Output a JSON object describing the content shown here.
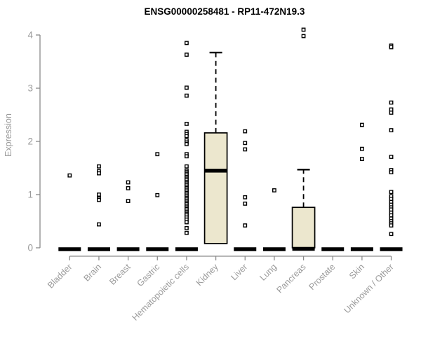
{
  "title": "ENSG00000258481 - RP11-472N19.3",
  "colors": {
    "background": "#ffffff",
    "axis": "#8a8a8a",
    "tick_text": "#9a9a9a",
    "box_fill": "#ece7ce",
    "data_ink": "#000000"
  },
  "chart_data": {
    "type": "boxplot",
    "title": "ENSG00000258481 - RP11-472N19.3",
    "xlabel": "",
    "ylabel": "Expression",
    "ylim": [
      0,
      4.15
    ],
    "yticks": [
      0,
      1,
      2,
      3,
      4
    ],
    "grid": false,
    "legend": false,
    "categories": [
      "Bladder",
      "Brain",
      "Breast",
      "Gastric",
      "Hematopoietic cells",
      "Kidney",
      "Liver",
      "Lung",
      "Pancreas",
      "Prostate",
      "Skin",
      "Unknown / Other"
    ],
    "series": [
      {
        "category": "Bladder",
        "q1": 0,
        "median": 0,
        "q3": 0,
        "whisker_low": null,
        "whisker_high": null,
        "outliers": [
          1.36
        ]
      },
      {
        "category": "Brain",
        "q1": 0,
        "median": 0,
        "q3": 0,
        "whisker_low": null,
        "whisker_high": null,
        "outliers": [
          1.53,
          1.44,
          1.4,
          1.0,
          0.93,
          0.9,
          0.44
        ]
      },
      {
        "category": "Breast",
        "q1": 0,
        "median": 0,
        "q3": 0,
        "whisker_low": null,
        "whisker_high": null,
        "outliers": [
          1.23,
          1.12,
          0.88
        ]
      },
      {
        "category": "Gastric",
        "q1": 0,
        "median": 0,
        "q3": 0,
        "whisker_low": null,
        "whisker_high": null,
        "outliers": [
          1.76,
          0.99
        ]
      },
      {
        "category": "Hematopoietic cells",
        "q1": 0,
        "median": 0,
        "q3": 0,
        "whisker_low": null,
        "whisker_high": null,
        "outliers": [
          3.85,
          3.63,
          3.01,
          2.86,
          2.33,
          2.18,
          2.14,
          2.1,
          2.02,
          1.98,
          1.95,
          1.76,
          1.72,
          1.53,
          1.45,
          1.42,
          1.39,
          1.36,
          1.33,
          1.3,
          1.27,
          1.24,
          1.21,
          1.18,
          1.15,
          1.12,
          1.09,
          1.06,
          1.03,
          1.0,
          0.97,
          0.94,
          0.91,
          0.88,
          0.85,
          0.82,
          0.79,
          0.76,
          0.73,
          0.7,
          0.67,
          0.64,
          0.61,
          0.57,
          0.53,
          0.48,
          0.37,
          0.28
        ]
      },
      {
        "category": "Kidney",
        "q1": 0.08,
        "median": 1.45,
        "q3": 2.16,
        "whisker_low": null,
        "whisker_high": 3.67,
        "outliers": []
      },
      {
        "category": "Liver",
        "q1": 0,
        "median": 0,
        "q3": 0,
        "whisker_low": null,
        "whisker_high": null,
        "outliers": [
          2.19,
          1.97,
          1.85,
          0.95,
          0.83,
          0.42
        ]
      },
      {
        "category": "Lung",
        "q1": 0,
        "median": 0,
        "q3": 0,
        "whisker_low": null,
        "whisker_high": null,
        "outliers": [
          1.08
        ]
      },
      {
        "category": "Pancreas",
        "q1": 0,
        "median": 0,
        "q3": 0.76,
        "whisker_low": null,
        "whisker_high": 1.47,
        "outliers": [
          4.1,
          3.98
        ]
      },
      {
        "category": "Prostate",
        "q1": 0,
        "median": 0,
        "q3": 0,
        "whisker_low": null,
        "whisker_high": null,
        "outliers": []
      },
      {
        "category": "Skin",
        "q1": 0,
        "median": 0,
        "q3": 0,
        "whisker_low": null,
        "whisker_high": null,
        "outliers": [
          2.31,
          1.86,
          1.67
        ]
      },
      {
        "category": "Unknown / Other",
        "q1": 0,
        "median": 0,
        "q3": 0,
        "whisker_low": null,
        "whisker_high": null,
        "outliers": [
          3.8,
          3.77,
          2.73,
          2.6,
          2.54,
          2.21,
          1.71,
          1.46,
          1.42,
          1.05,
          0.97,
          0.92,
          0.86,
          0.81,
          0.76,
          0.72,
          0.66,
          0.61,
          0.55,
          0.5,
          0.46,
          0.42,
          0.26
        ]
      }
    ]
  }
}
